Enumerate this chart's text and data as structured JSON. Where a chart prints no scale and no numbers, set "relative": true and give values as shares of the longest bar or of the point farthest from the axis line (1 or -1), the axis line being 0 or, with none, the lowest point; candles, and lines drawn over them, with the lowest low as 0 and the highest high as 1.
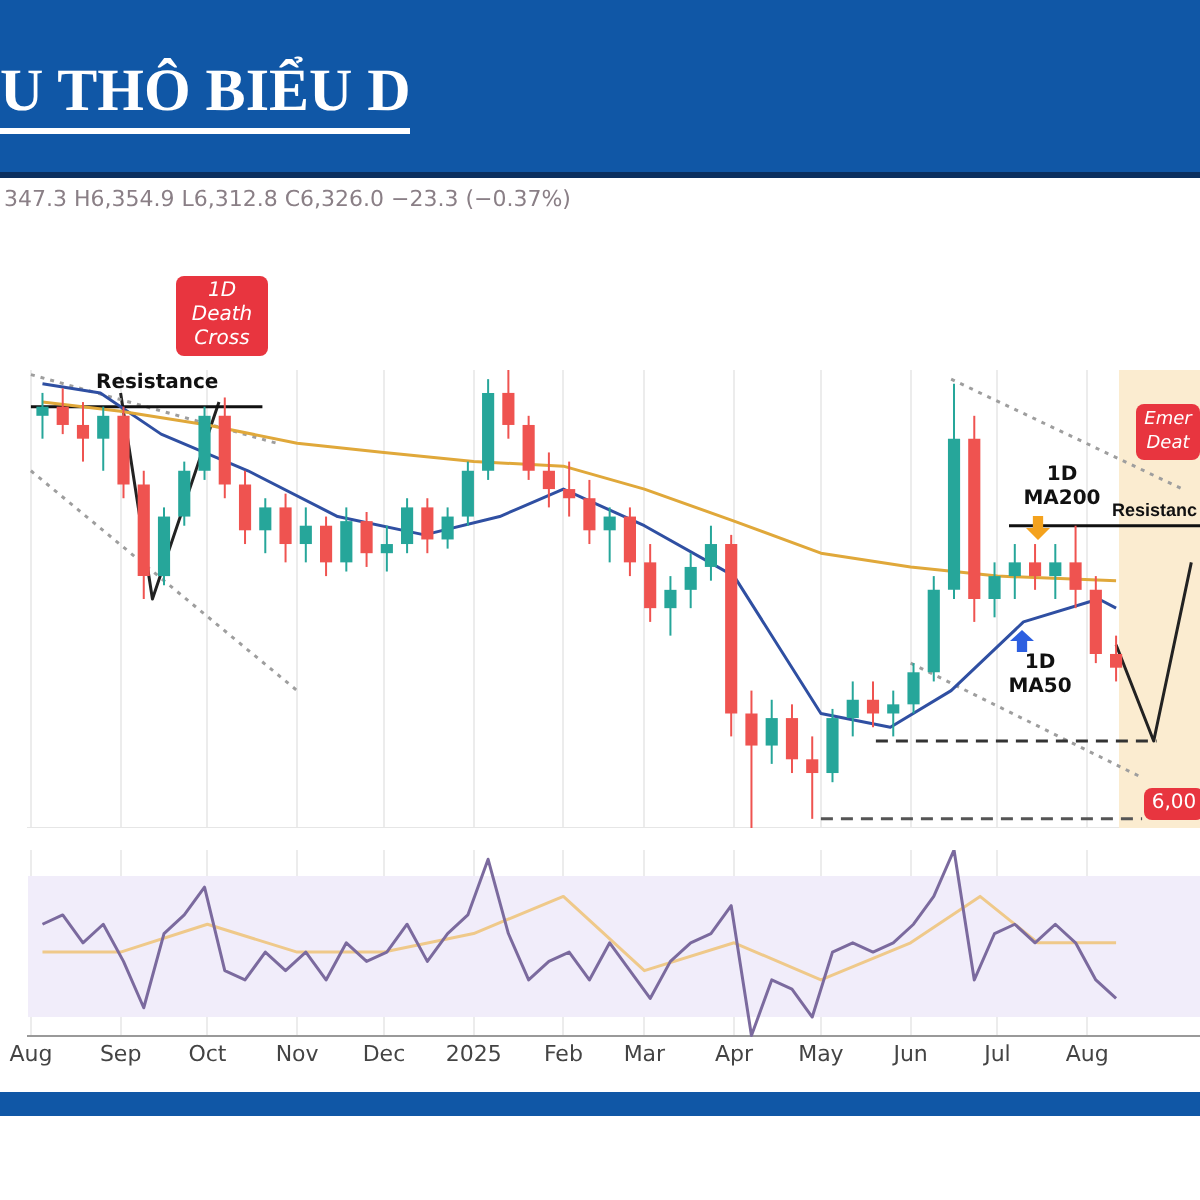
{
  "chart_data": [
    {
      "type": "candlestick",
      "title": "U THÔ BIỂU D",
      "relative": true,
      "tick_labels": false,
      "grid": "x",
      "marker": "none",
      "xlim": [
        "2024-07-31",
        "2025-09-09"
      ],
      "xticks": [
        {
          "value": "2024-08-01",
          "label": null
        },
        {
          "value": "2024-09-01",
          "label": null
        },
        {
          "value": "2024-10-01",
          "label": null
        },
        {
          "value": "2024-11-01",
          "label": null
        },
        {
          "value": "2024-12-01",
          "label": null
        },
        {
          "value": "2025-01-01",
          "label": null
        },
        {
          "value": "2025-02-01",
          "label": null
        },
        {
          "value": "2025-03-01",
          "label": null
        },
        {
          "value": "2025-04-01",
          "label": null
        },
        {
          "value": "2025-05-01",
          "label": null
        },
        {
          "value": "2025-06-01",
          "label": null
        },
        {
          "value": "2025-07-01",
          "label": null
        },
        {
          "value": "2025-08-01",
          "label": null
        }
      ],
      "x": [
        "2024-08-05",
        "2024-08-12",
        "2024-08-19",
        "2024-08-26",
        "2024-09-02",
        "2024-09-09",
        "2024-09-16",
        "2024-09-23",
        "2024-09-30",
        "2024-10-07",
        "2024-10-14",
        "2024-10-21",
        "2024-10-28",
        "2024-11-04",
        "2024-11-11",
        "2024-11-18",
        "2024-11-25",
        "2024-12-02",
        "2024-12-09",
        "2024-12-16",
        "2024-12-23",
        "2024-12-30",
        "2025-01-06",
        "2025-01-13",
        "2025-01-20",
        "2025-01-27",
        "2025-02-03",
        "2025-02-10",
        "2025-02-17",
        "2025-02-24",
        "2025-03-03",
        "2025-03-10",
        "2025-03-17",
        "2025-03-24",
        "2025-03-31",
        "2025-04-07",
        "2025-04-14",
        "2025-04-21",
        "2025-04-28",
        "2025-05-05",
        "2025-05-12",
        "2025-05-19",
        "2025-05-26",
        "2025-06-02",
        "2025-06-09",
        "2025-06-16",
        "2025-06-23",
        "2025-06-30",
        "2025-07-07",
        "2025-07-14",
        "2025-07-21",
        "2025-07-28",
        "2025-08-04",
        "2025-08-11"
      ],
      "ohlc": [
        [
          0.9,
          0.95,
          0.85,
          0.92
        ],
        [
          0.92,
          0.96,
          0.86,
          0.88
        ],
        [
          0.88,
          0.93,
          0.8,
          0.85
        ],
        [
          0.85,
          0.92,
          0.78,
          0.9
        ],
        [
          0.9,
          0.92,
          0.72,
          0.75
        ],
        [
          0.75,
          0.78,
          0.5,
          0.55
        ],
        [
          0.55,
          0.7,
          0.53,
          0.68
        ],
        [
          0.68,
          0.8,
          0.66,
          0.78
        ],
        [
          0.78,
          0.92,
          0.76,
          0.9
        ],
        [
          0.9,
          0.94,
          0.72,
          0.75
        ],
        [
          0.75,
          0.78,
          0.62,
          0.65
        ],
        [
          0.65,
          0.72,
          0.6,
          0.7
        ],
        [
          0.7,
          0.73,
          0.58,
          0.62
        ],
        [
          0.62,
          0.7,
          0.58,
          0.66
        ],
        [
          0.66,
          0.68,
          0.55,
          0.58
        ],
        [
          0.58,
          0.7,
          0.56,
          0.67
        ],
        [
          0.67,
          0.69,
          0.57,
          0.6
        ],
        [
          0.6,
          0.66,
          0.56,
          0.62
        ],
        [
          0.62,
          0.72,
          0.6,
          0.7
        ],
        [
          0.7,
          0.72,
          0.6,
          0.63
        ],
        [
          0.63,
          0.7,
          0.61,
          0.68
        ],
        [
          0.68,
          0.8,
          0.66,
          0.78
        ],
        [
          0.78,
          0.98,
          0.76,
          0.95
        ],
        [
          0.95,
          1.0,
          0.85,
          0.88
        ],
        [
          0.88,
          0.9,
          0.76,
          0.78
        ],
        [
          0.78,
          0.82,
          0.7,
          0.74
        ],
        [
          0.74,
          0.8,
          0.68,
          0.72
        ],
        [
          0.72,
          0.76,
          0.62,
          0.65
        ],
        [
          0.65,
          0.7,
          0.58,
          0.68
        ],
        [
          0.68,
          0.7,
          0.55,
          0.58
        ],
        [
          0.58,
          0.62,
          0.45,
          0.48
        ],
        [
          0.48,
          0.55,
          0.42,
          0.52
        ],
        [
          0.52,
          0.6,
          0.48,
          0.57
        ],
        [
          0.57,
          0.66,
          0.54,
          0.62
        ],
        [
          0.62,
          0.64,
          0.2,
          0.25
        ],
        [
          0.25,
          0.3,
          0.0,
          0.18
        ],
        [
          0.18,
          0.28,
          0.14,
          0.24
        ],
        [
          0.24,
          0.27,
          0.12,
          0.15
        ],
        [
          0.15,
          0.2,
          0.02,
          0.12
        ],
        [
          0.12,
          0.26,
          0.1,
          0.24
        ],
        [
          0.24,
          0.32,
          0.2,
          0.28
        ],
        [
          0.28,
          0.32,
          0.22,
          0.25
        ],
        [
          0.25,
          0.3,
          0.2,
          0.27
        ],
        [
          0.27,
          0.36,
          0.25,
          0.34
        ],
        [
          0.34,
          0.55,
          0.32,
          0.52
        ],
        [
          0.52,
          0.97,
          0.5,
          0.85
        ],
        [
          0.85,
          0.9,
          0.45,
          0.5
        ],
        [
          0.5,
          0.58,
          0.46,
          0.55
        ],
        [
          0.55,
          0.62,
          0.5,
          0.58
        ],
        [
          0.58,
          0.62,
          0.52,
          0.55
        ],
        [
          0.55,
          0.62,
          0.5,
          0.58
        ],
        [
          0.58,
          0.66,
          0.48,
          0.52
        ],
        [
          0.52,
          0.55,
          0.36,
          0.38
        ],
        [
          0.38,
          0.42,
          0.32,
          0.35
        ]
      ],
      "series": [
        {
          "type": "line",
          "color": "#e0a83a",
          "x": [
            "2024-08-05",
            "2024-09-01",
            "2024-10-01",
            "2024-11-01",
            "2024-12-01",
            "2025-01-01",
            "2025-02-01",
            "2025-03-01",
            "2025-04-01",
            "2025-05-01",
            "2025-06-01",
            "2025-07-01",
            "2025-08-11"
          ],
          "values": [
            0.93,
            0.91,
            0.88,
            0.84,
            0.82,
            0.8,
            0.79,
            0.74,
            0.67,
            0.6,
            0.57,
            0.55,
            0.54
          ]
        },
        {
          "type": "line",
          "color": "#2f4fa2",
          "x": [
            "2024-08-05",
            "2024-08-25",
            "2024-09-15",
            "2024-10-15",
            "2024-11-15",
            "2024-12-15",
            "2025-01-10",
            "2025-02-01",
            "2025-03-01",
            "2025-04-01",
            "2025-05-01",
            "2025-05-25",
            "2025-06-15",
            "2025-07-10",
            "2025-08-05",
            "2025-08-11"
          ],
          "values": [
            0.97,
            0.95,
            0.86,
            0.78,
            0.68,
            0.64,
            0.68,
            0.74,
            0.66,
            0.55,
            0.25,
            0.22,
            0.3,
            0.45,
            0.5,
            0.48
          ]
        },
        {
          "type": "line",
          "color": "#111111",
          "line_style": "solid",
          "x": [
            "2024-08-01",
            "2024-10-20"
          ],
          "values": [
            0.92,
            0.92
          ]
        },
        {
          "type": "line",
          "color": "#111111",
          "line_style": "solid",
          "x": [
            "2025-07-05",
            "2025-09-09"
          ],
          "values": [
            0.66,
            0.66
          ]
        },
        {
          "type": "line",
          "color": "#333333",
          "line_style": "dashed",
          "x": [
            "2025-05-20",
            "2025-08-25"
          ],
          "values": [
            0.19,
            0.19
          ]
        },
        {
          "type": "line",
          "color": "#555555",
          "line_style": "dashed",
          "x": [
            "2025-05-01",
            "2025-08-20"
          ],
          "values": [
            0.02,
            0.02
          ]
        },
        {
          "type": "line",
          "color": "#9e9e9e",
          "line_style": "dotted",
          "x": [
            "2024-08-01",
            "2024-10-25"
          ],
          "values": [
            0.99,
            0.84
          ]
        },
        {
          "type": "line",
          "color": "#9e9e9e",
          "line_style": "dotted",
          "x": [
            "2024-08-01",
            "2024-11-01"
          ],
          "values": [
            0.78,
            0.3
          ]
        },
        {
          "type": "line",
          "color": "#9e9e9e",
          "line_style": "dotted",
          "x": [
            "2025-06-15",
            "2025-09-03"
          ],
          "values": [
            0.98,
            0.74
          ]
        },
        {
          "type": "line",
          "color": "#9e9e9e",
          "line_style": "dotted",
          "x": [
            "2025-06-01",
            "2025-08-20"
          ],
          "values": [
            0.36,
            0.11
          ]
        },
        {
          "type": "line",
          "color": "#222222",
          "line_style": "solid",
          "x": [
            "2024-09-01",
            "2024-09-12",
            "2024-10-05"
          ],
          "values": [
            0.95,
            0.5,
            0.93
          ]
        },
        {
          "type": "line",
          "color": "#222222",
          "line_style": "solid",
          "x": [
            "2025-08-11",
            "2025-08-24",
            "2025-09-06"
          ],
          "values": [
            0.4,
            0.19,
            0.58
          ]
        }
      ],
      "bands": [
        {
          "axis": "x",
          "from": "2025-08-12",
          "to": "2025-09-09",
          "color": "#fbecd0"
        }
      ],
      "annotations": [
        "347.3 H6,354.9 L6,312.8 C6,326.0 −23.3 (−0.37%)",
        "1D Death Cross",
        "Resistance",
        "1D MA200",
        "1D MA50",
        "Resistanc",
        "Emer Deat",
        "6,00"
      ]
    },
    {
      "type": "line",
      "relative": true,
      "tick_labels": "x",
      "grid": "x",
      "marker": "none",
      "xlim": [
        "2024-07-31",
        "2025-09-09"
      ],
      "xticks": [
        {
          "value": "2024-08-01",
          "label": "Aug"
        },
        {
          "value": "2024-09-01",
          "label": "Sep"
        },
        {
          "value": "2024-10-01",
          "label": "Oct"
        },
        {
          "value": "2024-11-01",
          "label": "Nov"
        },
        {
          "value": "2024-12-01",
          "label": "Dec"
        },
        {
          "value": "2025-01-01",
          "label": "2025"
        },
        {
          "value": "2025-02-01",
          "label": "Feb"
        },
        {
          "value": "2025-03-01",
          "label": "Mar"
        },
        {
          "value": "2025-04-01",
          "label": "Apr"
        },
        {
          "value": "2025-05-01",
          "label": "May"
        },
        {
          "value": "2025-06-01",
          "label": "Jun"
        },
        {
          "value": "2025-07-01",
          "label": "Jul"
        },
        {
          "value": "2025-08-01",
          "label": "Aug"
        }
      ],
      "bands": [
        {
          "axis": "y",
          "from": 0.1,
          "to": 0.86,
          "color": "#f1edfa"
        }
      ],
      "series": [
        {
          "color": "#7b6a9e",
          "x": [
            "2024-08-05",
            "2024-08-12",
            "2024-08-19",
            "2024-08-26",
            "2024-09-02",
            "2024-09-09",
            "2024-09-16",
            "2024-09-23",
            "2024-09-30",
            "2024-10-07",
            "2024-10-14",
            "2024-10-21",
            "2024-10-28",
            "2024-11-04",
            "2024-11-11",
            "2024-11-18",
            "2024-11-25",
            "2024-12-02",
            "2024-12-09",
            "2024-12-16",
            "2024-12-23",
            "2024-12-30",
            "2025-01-06",
            "2025-01-13",
            "2025-01-20",
            "2025-01-27",
            "2025-02-03",
            "2025-02-10",
            "2025-02-17",
            "2025-02-24",
            "2025-03-03",
            "2025-03-10",
            "2025-03-17",
            "2025-03-24",
            "2025-03-31",
            "2025-04-07",
            "2025-04-14",
            "2025-04-21",
            "2025-04-28",
            "2025-05-05",
            "2025-05-12",
            "2025-05-19",
            "2025-05-26",
            "2025-06-02",
            "2025-06-09",
            "2025-06-16",
            "2025-06-23",
            "2025-06-30",
            "2025-07-07",
            "2025-07-14",
            "2025-07-21",
            "2025-07-28",
            "2025-08-04",
            "2025-08-11"
          ],
          "values": [
            0.6,
            0.65,
            0.5,
            0.6,
            0.4,
            0.15,
            0.55,
            0.65,
            0.8,
            0.35,
            0.3,
            0.45,
            0.35,
            0.45,
            0.3,
            0.5,
            0.4,
            0.45,
            0.6,
            0.4,
            0.55,
            0.65,
            0.95,
            0.55,
            0.3,
            0.4,
            0.45,
            0.3,
            0.5,
            0.35,
            0.2,
            0.4,
            0.5,
            0.55,
            0.7,
            0.0,
            0.3,
            0.25,
            0.1,
            0.45,
            0.5,
            0.45,
            0.5,
            0.6,
            0.75,
            1.0,
            0.3,
            0.55,
            0.6,
            0.5,
            0.6,
            0.5,
            0.3,
            0.2
          ]
        },
        {
          "color": "#efc98a",
          "x": [
            "2024-08-05",
            "2024-09-01",
            "2024-10-01",
            "2024-11-01",
            "2024-12-01",
            "2025-01-01",
            "2025-02-01",
            "2025-03-01",
            "2025-04-01",
            "2025-05-01",
            "2025-06-01",
            "2025-06-25",
            "2025-07-15",
            "2025-08-11"
          ],
          "values": [
            0.45,
            0.45,
            0.6,
            0.45,
            0.45,
            0.55,
            0.75,
            0.35,
            0.5,
            0.3,
            0.5,
            0.75,
            0.5,
            0.5
          ]
        }
      ]
    }
  ]
}
